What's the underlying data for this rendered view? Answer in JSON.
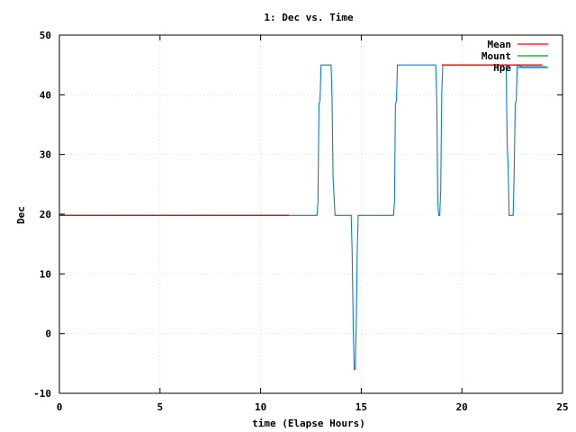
{
  "chart_data": {
    "type": "line",
    "title": "1: Dec vs. Time",
    "xlabel": "time (Elapse Hours)",
    "ylabel": "Dec",
    "xlim": [
      0,
      25
    ],
    "ylim": [
      -10,
      50
    ],
    "xticks": [
      0,
      5,
      10,
      15,
      20,
      25
    ],
    "yticks": [
      -10,
      0,
      10,
      20,
      30,
      40,
      50
    ],
    "grid": true,
    "legend_position": "top-right",
    "series": [
      {
        "name": "Mean",
        "color": "#ff0000",
        "segments": [
          [
            [
              0,
              19.8
            ],
            [
              11.4,
              19.8
            ]
          ],
          [
            [
              19.0,
              45.0
            ],
            [
              24.0,
              45.0
            ]
          ]
        ]
      },
      {
        "name": "Mount",
        "color": "#00a000",
        "segments": [
          [
            [
              0,
              19.9
            ],
            [
              0.2,
              19.8
            ]
          ]
        ]
      },
      {
        "name": "Hpe",
        "color": "#0a7fcc",
        "segments": [
          [
            [
              0,
              19.8
            ],
            [
              12.8,
              19.8
            ],
            [
              12.85,
              22
            ],
            [
              12.9,
              38.5
            ],
            [
              12.95,
              39
            ],
            [
              13.0,
              45
            ],
            [
              13.5,
              45
            ],
            [
              13.55,
              39
            ],
            [
              13.6,
              26
            ],
            [
              13.7,
              19.8
            ],
            [
              14.5,
              19.8
            ],
            [
              14.55,
              13.5
            ],
            [
              14.6,
              1
            ],
            [
              14.65,
              -6
            ],
            [
              14.7,
              -6
            ],
            [
              14.75,
              1
            ],
            [
              14.8,
              13.5
            ],
            [
              14.85,
              19.8
            ],
            [
              16.6,
              19.8
            ],
            [
              16.65,
              22
            ],
            [
              16.7,
              38.5
            ],
            [
              16.75,
              39
            ],
            [
              16.8,
              45
            ],
            [
              18.7,
              45
            ],
            [
              18.75,
              39
            ],
            [
              18.8,
              22
            ],
            [
              18.85,
              19.8
            ],
            [
              18.9,
              19.8
            ],
            [
              18.95,
              24
            ],
            [
              19.0,
              40
            ],
            [
              19.05,
              45
            ],
            [
              22.2,
              45
            ],
            [
              22.25,
              32
            ],
            [
              22.3,
              28
            ],
            [
              22.35,
              19.8
            ],
            [
              22.55,
              19.8
            ],
            [
              22.6,
              27
            ],
            [
              22.65,
              38.5
            ],
            [
              22.7,
              39
            ],
            [
              22.75,
              45
            ],
            [
              23.0,
              44.7
            ],
            [
              24.2,
              44.7
            ]
          ]
        ]
      }
    ]
  }
}
